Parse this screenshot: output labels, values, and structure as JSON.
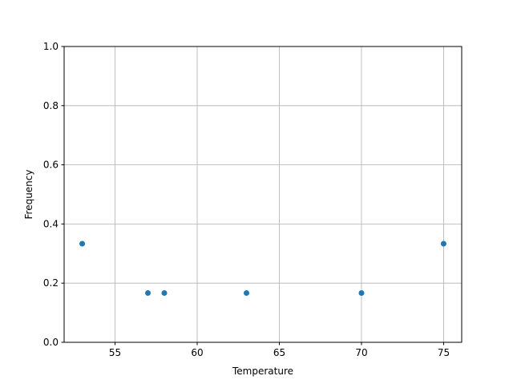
{
  "chart_data": {
    "type": "scatter",
    "title": "",
    "xlabel": "Temperature",
    "ylabel": "Frequency",
    "xlim": [
      51.9,
      76.1
    ],
    "ylim": [
      0,
      1.0
    ],
    "xticks": [
      55,
      60,
      65,
      70,
      75
    ],
    "yticks": [
      0.0,
      0.2,
      0.4,
      0.6,
      0.8,
      1.0
    ],
    "xtick_labels": [
      "55",
      "60",
      "65",
      "70",
      "75"
    ],
    "ytick_labels": [
      "0.0",
      "0.2",
      "0.4",
      "0.6",
      "0.8",
      "1.0"
    ],
    "grid": true,
    "color": "#1f77b4",
    "x": [
      53,
      57,
      58,
      63,
      70,
      75
    ],
    "y": [
      0.3333,
      0.1667,
      0.1667,
      0.1667,
      0.1667,
      0.3333
    ]
  }
}
